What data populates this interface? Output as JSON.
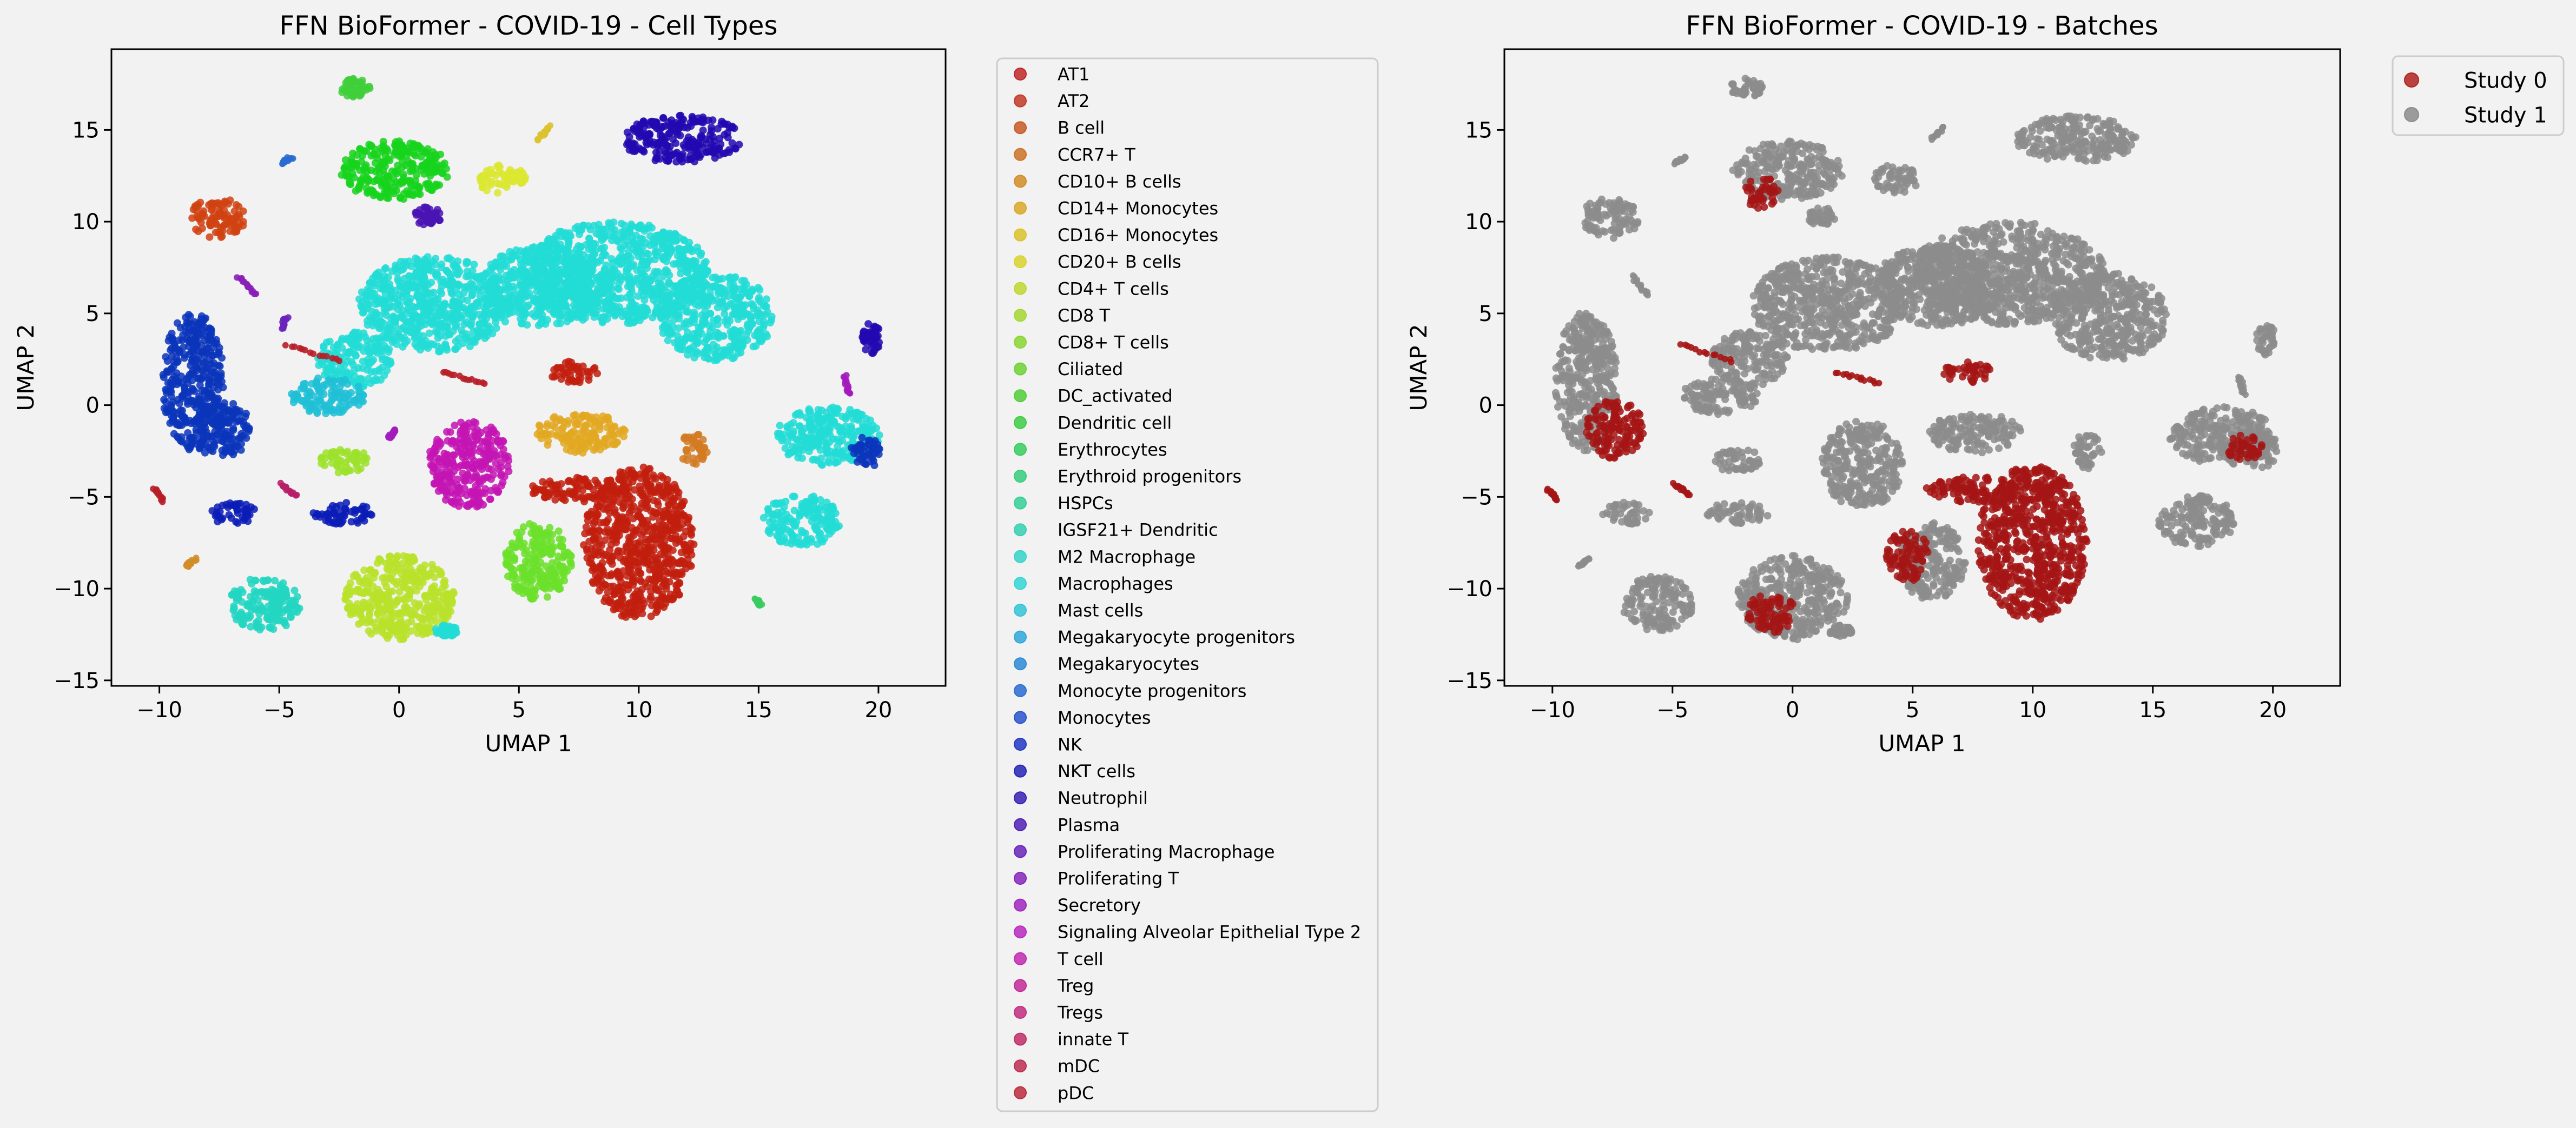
{
  "figure": {
    "background": "#f2f2f2",
    "axes_background": "#f2f2f2"
  },
  "chart_data": [
    {
      "type": "scatter",
      "title": "FFN BioFormer - COVID-19 - Cell Types",
      "xlabel": "UMAP 1",
      "ylabel": "UMAP 2",
      "xlim": [
        -12,
        22.8
      ],
      "ylim": [
        -15.3,
        19.4
      ],
      "xticks": [
        -10,
        -5,
        0,
        5,
        10,
        15,
        20
      ],
      "yticks": [
        -15,
        -10,
        -5,
        0,
        5,
        10,
        15
      ],
      "grid": false,
      "legend_position": "outside-right",
      "legend": [
        {
          "label": "AT1",
          "color": "#c0282a"
        },
        {
          "label": "AT2",
          "color": "#c23a26"
        },
        {
          "label": "B cell",
          "color": "#c85a28"
        },
        {
          "label": "CCR7+ T",
          "color": "#cd7328"
        },
        {
          "label": "CD10+ B cells",
          "color": "#d38d28"
        },
        {
          "label": "CD14+ Monocytes",
          "color": "#d9a82a"
        },
        {
          "label": "CD16+ Monocytes",
          "color": "#dcc22c"
        },
        {
          "label": "CD20+ B cells",
          "color": "#d9d42e"
        },
        {
          "label": "CD4+ T cells",
          "color": "#bfd730"
        },
        {
          "label": "CD8 T",
          "color": "#a6d732"
        },
        {
          "label": "CD8+ T cells",
          "color": "#8ad634"
        },
        {
          "label": "Ciliated",
          "color": "#6dd236"
        },
        {
          "label": "DC_activated",
          "color": "#52ce3a"
        },
        {
          "label": "Dendritic cell",
          "color": "#3fcc45"
        },
        {
          "label": "Erythrocytes",
          "color": "#38cc60"
        },
        {
          "label": "Erythroid progenitors",
          "color": "#36cd7c"
        },
        {
          "label": "HSPCs",
          "color": "#36cf98"
        },
        {
          "label": "IGSF21+ Dendritic",
          "color": "#36d0b2"
        },
        {
          "label": "M2 Macrophage",
          "color": "#36d4c8"
        },
        {
          "label": "Macrophages",
          "color": "#36d6d3"
        },
        {
          "label": "Mast cells",
          "color": "#34c4d6"
        },
        {
          "label": "Megakaryocyte progenitors",
          "color": "#30a8d8"
        },
        {
          "label": "Megakaryocytes",
          "color": "#2e8ad6"
        },
        {
          "label": "Monocyte progenitors",
          "color": "#2c6cd2"
        },
        {
          "label": "Monocytes",
          "color": "#2a52cc"
        },
        {
          "label": "NK",
          "color": "#2238c2"
        },
        {
          "label": "NKT cells",
          "color": "#2624b6"
        },
        {
          "label": "Neutrophil",
          "color": "#3a20b4"
        },
        {
          "label": "Plasma",
          "color": "#5022b6"
        },
        {
          "label": "Proliferating Macrophage",
          "color": "#6a24ba"
        },
        {
          "label": "Proliferating T",
          "color": "#8626bc"
        },
        {
          "label": "Secretory",
          "color": "#a028be"
        },
        {
          "label": "Signaling Alveolar Epithelial Type 2",
          "color": "#b82ac0"
        },
        {
          "label": "T cell",
          "color": "#c22ab2"
        },
        {
          "label": "Treg",
          "color": "#c22c98"
        },
        {
          "label": "Tregs",
          "color": "#c22e80"
        },
        {
          "label": "innate T",
          "color": "#c02e68"
        },
        {
          "label": "mDC",
          "color": "#be2e52"
        },
        {
          "label": "pDC",
          "color": "#bc2c3e"
        }
      ],
      "clusters": [
        {
          "label": "Macrophages",
          "color": "#22dcd6",
          "cx": 1.5,
          "cy": 5.5,
          "rx": 3.2,
          "ry": 2.6
        },
        {
          "label": "Macrophages",
          "color": "#22dcd6",
          "cx": 6.0,
          "cy": 6.5,
          "rx": 2.6,
          "ry": 2.2
        },
        {
          "label": "Macrophages",
          "color": "#22dcd6",
          "cx": 9.0,
          "cy": 7.2,
          "rx": 4.0,
          "ry": 2.8
        },
        {
          "label": "Macrophages",
          "color": "#22dcd6",
          "cx": 13.2,
          "cy": 4.8,
          "rx": 2.4,
          "ry": 2.4
        },
        {
          "label": "Macrophages",
          "color": "#22dcd6",
          "cx": -1.8,
          "cy": 2.5,
          "rx": 1.6,
          "ry": 1.5
        },
        {
          "label": "AT1",
          "color": "#c21e0e",
          "cx": 10.0,
          "cy": -7.5,
          "rx": 2.3,
          "ry": 4.2
        },
        {
          "label": "AT1",
          "color": "#c21e0e",
          "cx": 7.5,
          "cy": -4.6,
          "rx": 2.0,
          "ry": 0.7
        },
        {
          "label": "AT1",
          "color": "#c21e0e",
          "cx": 7.3,
          "cy": 1.8,
          "rx": 1.0,
          "ry": 0.6
        },
        {
          "label": "NK",
          "color": "#0a35bb",
          "cx": -8.6,
          "cy": 1.3,
          "rx": 1.3,
          "ry": 3.8
        },
        {
          "label": "NK",
          "color": "#0a35bb",
          "cx": -7.4,
          "cy": -1.3,
          "rx": 1.2,
          "ry": 1.6
        },
        {
          "label": "CD4+ T cells",
          "color": "#b8e22a",
          "cx": 0.0,
          "cy": -10.5,
          "rx": 2.3,
          "ry": 2.3
        },
        {
          "label": "Ciliated",
          "color": "#6be02a",
          "cx": 5.8,
          "cy": -8.5,
          "rx": 1.4,
          "ry": 2.1
        },
        {
          "label": "CD8+ T cells",
          "color": "#16d41c",
          "cx": -0.2,
          "cy": 12.8,
          "rx": 2.3,
          "ry": 1.6
        },
        {
          "label": "Treg",
          "color": "#c414b4",
          "cx": 2.9,
          "cy": -3.2,
          "rx": 1.7,
          "ry": 2.4
        },
        {
          "label": "CD14+ Monocytes",
          "color": "#e2a822",
          "cx": 7.6,
          "cy": -1.5,
          "rx": 1.9,
          "ry": 1.1
        },
        {
          "label": "B cell",
          "color": "#d04212",
          "cx": -7.6,
          "cy": 10.2,
          "rx": 1.2,
          "ry": 1.1
        },
        {
          "label": "Neutrophil",
          "color": "#2208b0",
          "cx": 11.8,
          "cy": 14.5,
          "rx": 2.5,
          "ry": 1.3
        },
        {
          "label": "M2 Macrophage",
          "color": "#22d6c2",
          "cx": -5.6,
          "cy": -10.8,
          "rx": 1.5,
          "ry": 1.5
        },
        {
          "label": "Mast cells",
          "color": "#20c0d6",
          "cx": -3.0,
          "cy": 0.5,
          "rx": 1.6,
          "ry": 1.0
        },
        {
          "label": "Megakaryocytes",
          "color": "#0a1cb6",
          "cx": -6.9,
          "cy": -5.9,
          "rx": 1.0,
          "ry": 0.6
        },
        {
          "label": "Megakaryocytes",
          "color": "#0a1cb6",
          "cx": -2.3,
          "cy": -5.9,
          "rx": 1.3,
          "ry": 0.6
        },
        {
          "label": "CD8 T",
          "color": "#9ce22a",
          "cx": -2.3,
          "cy": -3.0,
          "rx": 1.0,
          "ry": 0.7
        },
        {
          "label": "CD20+ B cells",
          "color": "#dce630",
          "cx": 4.3,
          "cy": 12.3,
          "rx": 1.0,
          "ry": 0.8
        },
        {
          "label": "Plasma",
          "color": "#4a14b4",
          "cx": 1.2,
          "cy": 10.3,
          "rx": 0.6,
          "ry": 0.5
        },
        {
          "label": "Macrophages",
          "color": "#22dcd6",
          "cx": 17.9,
          "cy": -1.7,
          "rx": 2.2,
          "ry": 1.6
        },
        {
          "label": "Macrophages",
          "color": "#22dcd6",
          "cx": 16.8,
          "cy": -6.3,
          "rx": 1.6,
          "ry": 1.4
        },
        {
          "label": "NK",
          "color": "#0a35bb",
          "cx": 19.5,
          "cy": -2.5,
          "rx": 0.7,
          "ry": 0.9
        },
        {
          "label": "Ciliated",
          "color": "#3ecf3a",
          "cx": -1.9,
          "cy": 17.3,
          "rx": 0.7,
          "ry": 0.5
        },
        {
          "label": "Macrophages",
          "color": "#22dcd6",
          "cx": 2.0,
          "cy": -12.3,
          "rx": 0.5,
          "ry": 0.3
        },
        {
          "label": "Neutrophil",
          "color": "#2208b0",
          "cx": 19.7,
          "cy": 3.6,
          "rx": 0.4,
          "ry": 0.9
        },
        {
          "label": "CD10+ B cells",
          "color": "#d27a22",
          "cx": 12.3,
          "cy": -2.5,
          "rx": 0.6,
          "ry": 1.0
        }
      ],
      "strands": [
        {
          "label": "Proliferating T",
          "color": "#8a1eb6",
          "x1": -6.7,
          "y1": 7.0,
          "x2": -6.0,
          "y2": 6.0
        },
        {
          "label": "pDC",
          "color": "#b81e28",
          "x1": -4.7,
          "y1": 3.3,
          "x2": -2.5,
          "y2": 2.4
        },
        {
          "label": "pDC",
          "color": "#b81e28",
          "x1": 1.8,
          "y1": 1.8,
          "x2": 3.6,
          "y2": 1.2
        },
        {
          "label": "pDC",
          "color": "#b81e28",
          "x1": -10.2,
          "y1": -4.6,
          "x2": -9.8,
          "y2": -5.2
        },
        {
          "label": "innate T",
          "color": "#b81e68",
          "x1": -4.9,
          "y1": -4.3,
          "x2": -4.3,
          "y2": -4.9
        },
        {
          "label": "Monocyte progenitors",
          "color": "#2a6cd2",
          "x1": -4.9,
          "y1": 13.2,
          "x2": -4.5,
          "y2": 13.5
        },
        {
          "label": "Secretory",
          "color": "#a21cbc",
          "x1": -0.4,
          "y1": -1.8,
          "x2": -0.1,
          "y2": -1.3
        },
        {
          "label": "Secretory",
          "color": "#a21cbc",
          "x1": 18.6,
          "y1": 1.6,
          "x2": 18.8,
          "y2": 0.6
        },
        {
          "label": "CD10+ B cells",
          "color": "#d38d28",
          "x1": -8.9,
          "y1": -8.8,
          "x2": -8.5,
          "y2": -8.4
        },
        {
          "label": "CD20+ B cells",
          "color": "#dcc22c",
          "x1": 5.8,
          "y1": 14.5,
          "x2": 6.3,
          "y2": 15.2
        },
        {
          "label": "Erythrocytes",
          "color": "#38cc60",
          "x1": 14.9,
          "y1": -10.6,
          "x2": 15.1,
          "y2": -10.9
        },
        {
          "label": "Proliferating Macrophage",
          "color": "#6a24ba",
          "x1": -4.9,
          "y1": 4.2,
          "x2": -4.7,
          "y2": 4.8
        }
      ]
    },
    {
      "type": "scatter",
      "title": "FFN BioFormer - COVID-19 - Batches",
      "xlabel": "UMAP 1",
      "ylabel": "UMAP 2",
      "xlim": [
        -12,
        22.8
      ],
      "ylim": [
        -15.3,
        19.4
      ],
      "xticks": [
        -10,
        -5,
        0,
        5,
        10,
        15,
        20
      ],
      "yticks": [
        -15,
        -10,
        -5,
        0,
        5,
        10,
        15
      ],
      "grid": false,
      "legend_position": "outside-upper-right",
      "legend": [
        {
          "label": "Study 0",
          "color": "#b22222"
        },
        {
          "label": "Study 1",
          "color": "#8c8c8c"
        }
      ],
      "clusters": [
        {
          "label": "Study 1",
          "color": "#8c8c8c",
          "cx": 1.5,
          "cy": 5.5,
          "rx": 3.2,
          "ry": 2.6
        },
        {
          "label": "Study 1",
          "color": "#8c8c8c",
          "cx": 6.0,
          "cy": 6.5,
          "rx": 2.6,
          "ry": 2.2
        },
        {
          "label": "Study 1",
          "color": "#8c8c8c",
          "cx": 9.0,
          "cy": 7.2,
          "rx": 4.0,
          "ry": 2.8
        },
        {
          "label": "Study 1",
          "color": "#8c8c8c",
          "cx": 13.2,
          "cy": 4.8,
          "rx": 2.4,
          "ry": 2.4
        },
        {
          "label": "Study 1",
          "color": "#8c8c8c",
          "cx": -1.8,
          "cy": 2.5,
          "rx": 1.6,
          "ry": 1.5
        },
        {
          "label": "Study 0",
          "color": "#a51515",
          "cx": 10.0,
          "cy": -7.5,
          "rx": 2.3,
          "ry": 4.2
        },
        {
          "label": "Study 0",
          "color": "#a51515",
          "cx": 7.5,
          "cy": -4.6,
          "rx": 2.0,
          "ry": 0.7
        },
        {
          "label": "Study 0",
          "color": "#a51515",
          "cx": 7.3,
          "cy": 1.8,
          "rx": 1.0,
          "ry": 0.6
        },
        {
          "label": "Study 1",
          "color": "#8c8c8c",
          "cx": -8.6,
          "cy": 1.3,
          "rx": 1.3,
          "ry": 3.8
        },
        {
          "label": "Study 0",
          "color": "#a51515",
          "cx": -7.4,
          "cy": -1.3,
          "rx": 1.2,
          "ry": 1.6
        },
        {
          "label": "Study 1",
          "color": "#8c8c8c",
          "cx": 0.0,
          "cy": -10.5,
          "rx": 2.3,
          "ry": 2.3
        },
        {
          "label": "Study 1",
          "color": "#8c8c8c",
          "cx": 5.8,
          "cy": -8.5,
          "rx": 1.4,
          "ry": 2.1
        },
        {
          "label": "Study 1",
          "color": "#8c8c8c",
          "cx": -0.2,
          "cy": 12.8,
          "rx": 2.3,
          "ry": 1.6
        },
        {
          "label": "Study 1",
          "color": "#8c8c8c",
          "cx": 2.9,
          "cy": -3.2,
          "rx": 1.7,
          "ry": 2.4
        },
        {
          "label": "Study 1",
          "color": "#8c8c8c",
          "cx": 7.6,
          "cy": -1.5,
          "rx": 1.9,
          "ry": 1.1
        },
        {
          "label": "Study 1",
          "color": "#8c8c8c",
          "cx": -7.6,
          "cy": 10.2,
          "rx": 1.2,
          "ry": 1.1
        },
        {
          "label": "Study 1",
          "color": "#8c8c8c",
          "cx": 11.8,
          "cy": 14.5,
          "rx": 2.5,
          "ry": 1.3
        },
        {
          "label": "Study 1",
          "color": "#8c8c8c",
          "cx": -5.6,
          "cy": -10.8,
          "rx": 1.5,
          "ry": 1.5
        },
        {
          "label": "Study 1",
          "color": "#8c8c8c",
          "cx": -3.0,
          "cy": 0.5,
          "rx": 1.6,
          "ry": 1.0
        },
        {
          "label": "Study 1",
          "color": "#8c8c8c",
          "cx": -6.9,
          "cy": -5.9,
          "rx": 1.0,
          "ry": 0.6
        },
        {
          "label": "Study 1",
          "color": "#8c8c8c",
          "cx": -2.3,
          "cy": -5.9,
          "rx": 1.3,
          "ry": 0.6
        },
        {
          "label": "Study 1",
          "color": "#8c8c8c",
          "cx": -2.3,
          "cy": -3.0,
          "rx": 1.0,
          "ry": 0.7
        },
        {
          "label": "Study 1",
          "color": "#8c8c8c",
          "cx": 4.3,
          "cy": 12.3,
          "rx": 1.0,
          "ry": 0.8
        },
        {
          "label": "Study 1",
          "color": "#8c8c8c",
          "cx": 1.2,
          "cy": 10.3,
          "rx": 0.6,
          "ry": 0.5
        },
        {
          "label": "Study 1",
          "color": "#8c8c8c",
          "cx": 17.9,
          "cy": -1.7,
          "rx": 2.2,
          "ry": 1.6
        },
        {
          "label": "Study 1",
          "color": "#8c8c8c",
          "cx": 16.8,
          "cy": -6.3,
          "rx": 1.6,
          "ry": 1.4
        },
        {
          "label": "Study 1",
          "color": "#8c8c8c",
          "cx": 19.5,
          "cy": -2.5,
          "rx": 0.7,
          "ry": 0.9
        },
        {
          "label": "Study 1",
          "color": "#8c8c8c",
          "cx": -1.9,
          "cy": 17.3,
          "rx": 0.7,
          "ry": 0.5
        },
        {
          "label": "Study 1",
          "color": "#8c8c8c",
          "cx": 2.0,
          "cy": -12.3,
          "rx": 0.5,
          "ry": 0.3
        },
        {
          "label": "Study 1",
          "color": "#8c8c8c",
          "cx": 19.7,
          "cy": 3.6,
          "rx": 0.4,
          "ry": 0.9
        },
        {
          "label": "Study 1",
          "color": "#8c8c8c",
          "cx": 12.3,
          "cy": -2.5,
          "rx": 0.6,
          "ry": 1.0
        },
        {
          "label": "Study 0",
          "color": "#a51515",
          "cx": -1.3,
          "cy": 11.6,
          "rx": 0.7,
          "ry": 0.9
        },
        {
          "label": "Study 0",
          "color": "#a51515",
          "cx": 18.8,
          "cy": -2.3,
          "rx": 0.8,
          "ry": 0.7
        },
        {
          "label": "Study 0",
          "color": "#a51515",
          "cx": 4.8,
          "cy": -8.2,
          "rx": 0.9,
          "ry": 1.4
        },
        {
          "label": "Study 0",
          "color": "#a51515",
          "cx": -0.9,
          "cy": -11.3,
          "rx": 1.0,
          "ry": 1.1
        }
      ],
      "strands": [
        {
          "label": "Study 0",
          "color": "#a51515",
          "x1": -4.7,
          "y1": 3.3,
          "x2": -2.5,
          "y2": 2.4
        },
        {
          "label": "Study 0",
          "color": "#a51515",
          "x1": 1.8,
          "y1": 1.8,
          "x2": 3.6,
          "y2": 1.2
        },
        {
          "label": "Study 0",
          "color": "#a51515",
          "x1": -10.2,
          "y1": -4.6,
          "x2": -9.8,
          "y2": -5.2
        },
        {
          "label": "Study 0",
          "color": "#a51515",
          "x1": -4.9,
          "y1": -4.3,
          "x2": -4.3,
          "y2": -4.9
        },
        {
          "label": "Study 1",
          "color": "#8c8c8c",
          "x1": -6.7,
          "y1": 7.0,
          "x2": -6.0,
          "y2": 6.0
        },
        {
          "label": "Study 1",
          "color": "#8c8c8c",
          "x1": -4.9,
          "y1": 13.2,
          "x2": -4.5,
          "y2": 13.5
        },
        {
          "label": "Study 1",
          "color": "#8c8c8c",
          "x1": -8.9,
          "y1": -8.8,
          "x2": -8.5,
          "y2": -8.4
        },
        {
          "label": "Study 1",
          "color": "#8c8c8c",
          "x1": 5.8,
          "y1": 14.5,
          "x2": 6.3,
          "y2": 15.2
        },
        {
          "label": "Study 1",
          "color": "#8c8c8c",
          "x1": 18.6,
          "y1": 1.6,
          "x2": 18.8,
          "y2": 0.6
        }
      ]
    }
  ]
}
